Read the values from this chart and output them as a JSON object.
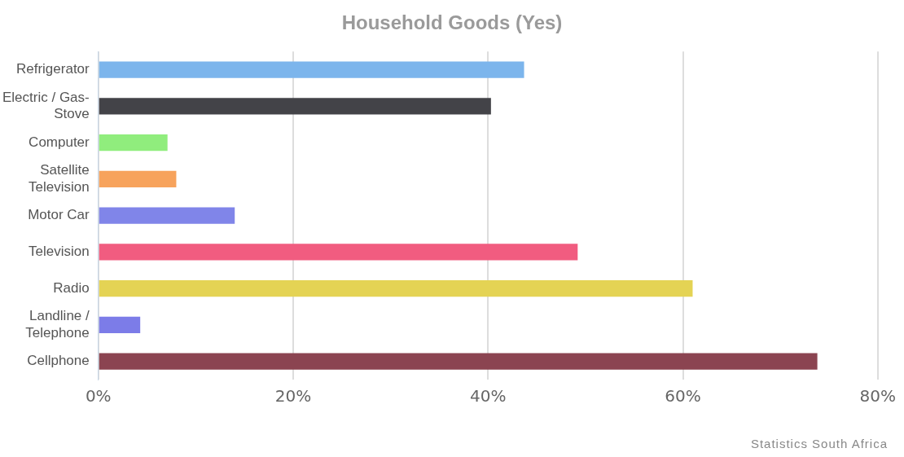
{
  "chart_data": {
    "type": "bar",
    "orientation": "horizontal",
    "title": "Household Goods (Yes)",
    "categories": [
      "Refrigerator",
      "Electric / Gas-Stove",
      "Computer",
      "Satellite Television",
      "Motor Car",
      "Television",
      "Radio",
      "Landline / Telephone",
      "Cellphone"
    ],
    "values": [
      43.7,
      40.3,
      7.1,
      8.0,
      14.0,
      49.2,
      61.0,
      4.3,
      73.8
    ],
    "colors": [
      "#7cb5ec",
      "#434348",
      "#90ed7d",
      "#f7a35c",
      "#8085e9",
      "#f15c80",
      "#e4d354",
      "#7c7ce8",
      "#8b4451"
    ],
    "xlim": [
      0,
      80
    ],
    "xticks": [
      {
        "value": 0,
        "label": "0%"
      },
      {
        "value": 20,
        "label": "20%"
      },
      {
        "value": 40,
        "label": "40%"
      },
      {
        "value": 60,
        "label": "60%"
      },
      {
        "value": 80,
        "label": "80%"
      }
    ],
    "grid": "x",
    "annotations": [
      "Statistics South Africa"
    ]
  }
}
